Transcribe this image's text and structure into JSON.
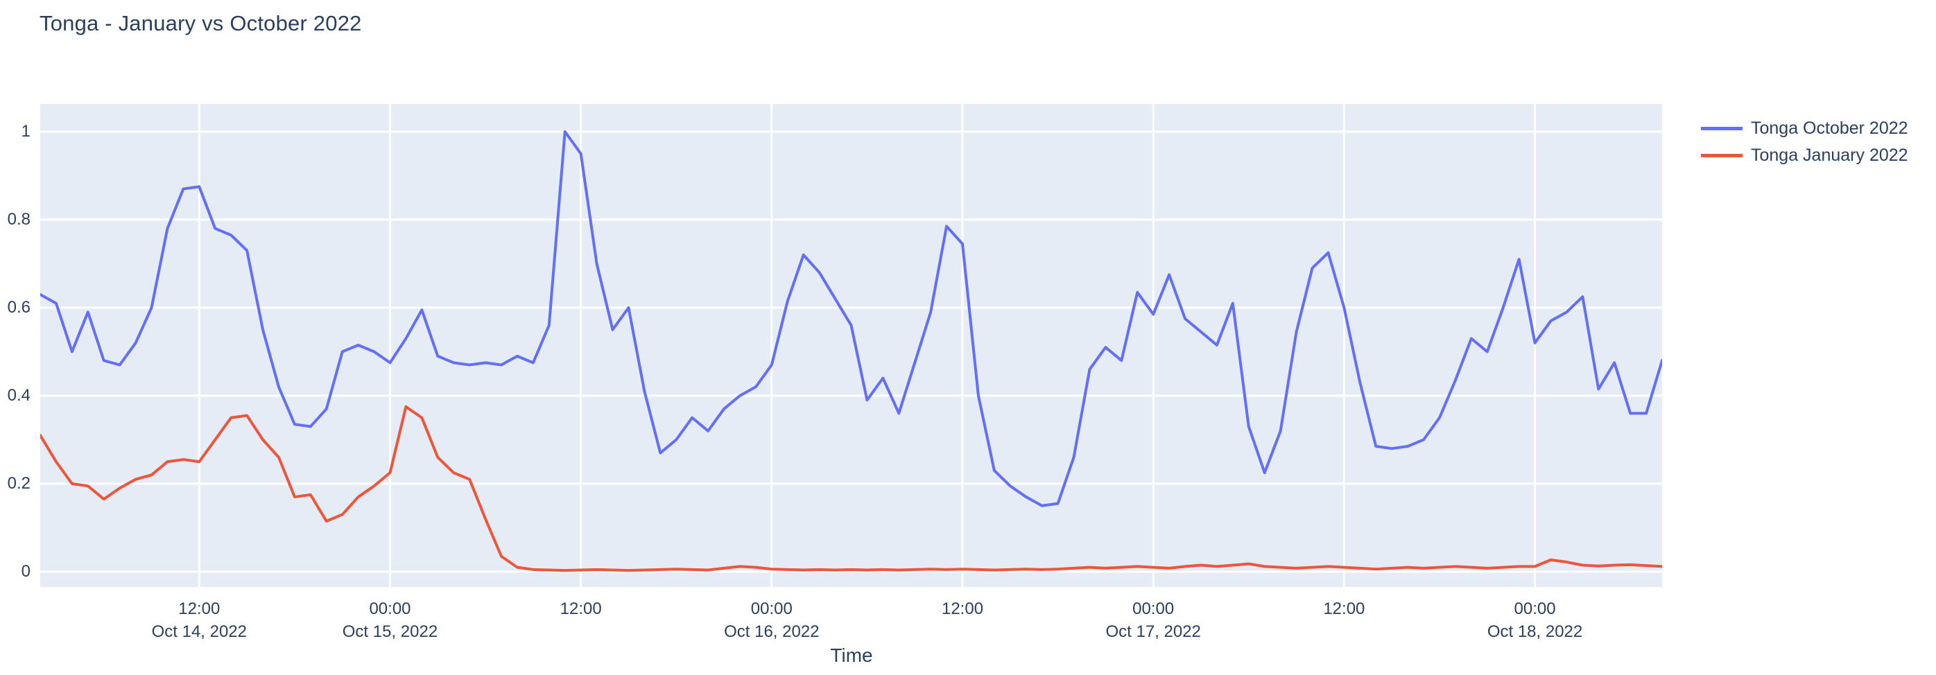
{
  "header": {
    "title": "Tonga - January vs October 2022"
  },
  "chart_data": {
    "type": "line",
    "title": "Tonga - January vs October 2022",
    "xlabel": "Time",
    "ylabel": "",
    "plot_bgcolor": "#e5ecf6",
    "grid_color": "#ffffff",
    "text_color": "#2a3f5f",
    "grid": true,
    "legend_position": "outside-top-right",
    "x_start": "2022-10-14 02:00",
    "x_step": "1 hour",
    "x_end": "2022-10-18 08:00",
    "ylim": [
      -0.04,
      1.06
    ],
    "y_ticks": [
      {
        "value": 0,
        "label": "0"
      },
      {
        "value": 0.2,
        "label": "0.2"
      },
      {
        "value": 0.4,
        "label": "0.4"
      },
      {
        "value": 0.6,
        "label": "0.6"
      },
      {
        "value": 0.8,
        "label": "0.8"
      },
      {
        "value": 1,
        "label": "1"
      }
    ],
    "x_ticks": [
      {
        "index": 10,
        "label": "12:00",
        "sublabel": "Oct 14, 2022"
      },
      {
        "index": 22,
        "label": "00:00",
        "sublabel": "Oct 15, 2022"
      },
      {
        "index": 34,
        "label": "12:00",
        "sublabel": ""
      },
      {
        "index": 46,
        "label": "00:00",
        "sublabel": "Oct 16, 2022"
      },
      {
        "index": 58,
        "label": "12:00",
        "sublabel": ""
      },
      {
        "index": 70,
        "label": "00:00",
        "sublabel": "Oct 17, 2022"
      },
      {
        "index": 82,
        "label": "12:00",
        "sublabel": ""
      },
      {
        "index": 94,
        "label": "00:00",
        "sublabel": "Oct 18, 2022"
      }
    ],
    "series": [
      {
        "name": "Tonga October 2022",
        "color": "#636efa",
        "values": [
          0.63,
          0.61,
          0.5,
          0.59,
          0.48,
          0.47,
          0.52,
          0.6,
          0.78,
          0.87,
          0.875,
          0.78,
          0.765,
          0.73,
          0.55,
          0.42,
          0.335,
          0.33,
          0.37,
          0.5,
          0.515,
          0.5,
          0.475,
          0.53,
          0.595,
          0.49,
          0.475,
          0.47,
          0.475,
          0.47,
          0.49,
          0.475,
          0.56,
          1.0,
          0.95,
          0.7,
          0.55,
          0.6,
          0.41,
          0.27,
          0.3,
          0.35,
          0.32,
          0.37,
          0.4,
          0.42,
          0.47,
          0.615,
          0.72,
          0.68,
          0.62,
          0.56,
          0.39,
          0.44,
          0.36,
          0.475,
          0.59,
          0.785,
          0.745,
          0.4,
          0.23,
          0.195,
          0.17,
          0.15,
          0.155,
          0.26,
          0.46,
          0.51,
          0.48,
          0.635,
          0.585,
          0.675,
          0.575,
          0.545,
          0.515,
          0.61,
          0.33,
          0.225,
          0.32,
          0.545,
          0.69,
          0.725,
          0.6,
          0.43,
          0.285,
          0.28,
          0.285,
          0.3,
          0.35,
          0.435,
          0.53,
          0.5,
          0.6,
          0.71,
          0.52,
          0.57,
          0.59,
          0.625,
          0.415,
          0.475,
          0.36,
          0.36,
          0.48
        ]
      },
      {
        "name": "Tonga January 2022",
        "color": "#ef553b",
        "values": [
          0.31,
          0.25,
          0.2,
          0.195,
          0.165,
          0.19,
          0.21,
          0.22,
          0.25,
          0.255,
          0.25,
          0.3,
          0.35,
          0.355,
          0.3,
          0.26,
          0.17,
          0.175,
          0.115,
          0.13,
          0.17,
          0.195,
          0.225,
          0.375,
          0.35,
          0.26,
          0.225,
          0.21,
          0.12,
          0.035,
          0.01,
          0.005,
          0.004,
          0.003,
          0.004,
          0.005,
          0.004,
          0.003,
          0.004,
          0.005,
          0.006,
          0.005,
          0.004,
          0.008,
          0.012,
          0.01,
          0.006,
          0.005,
          0.004,
          0.005,
          0.004,
          0.005,
          0.004,
          0.005,
          0.004,
          0.005,
          0.006,
          0.005,
          0.006,
          0.005,
          0.004,
          0.005,
          0.006,
          0.005,
          0.006,
          0.008,
          0.01,
          0.008,
          0.01,
          0.012,
          0.01,
          0.008,
          0.012,
          0.015,
          0.012,
          0.015,
          0.018,
          0.012,
          0.01,
          0.008,
          0.01,
          0.012,
          0.01,
          0.008,
          0.006,
          0.008,
          0.01,
          0.008,
          0.01,
          0.012,
          0.01,
          0.008,
          0.01,
          0.012,
          0.012,
          0.027,
          0.022,
          0.015,
          0.013,
          0.015,
          0.016,
          0.014,
          0.012
        ]
      }
    ]
  }
}
